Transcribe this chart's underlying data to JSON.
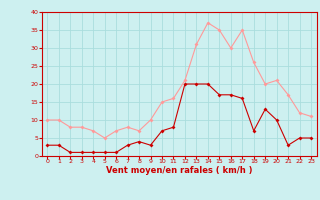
{
  "x": [
    0,
    1,
    2,
    3,
    4,
    5,
    6,
    7,
    8,
    9,
    10,
    11,
    12,
    13,
    14,
    15,
    16,
    17,
    18,
    19,
    20,
    21,
    22,
    23
  ],
  "wind_avg": [
    3,
    3,
    1,
    1,
    1,
    1,
    1,
    3,
    4,
    3,
    7,
    8,
    20,
    20,
    20,
    17,
    17,
    16,
    7,
    13,
    10,
    3,
    5,
    5
  ],
  "wind_gust": [
    10,
    10,
    8,
    8,
    7,
    5,
    7,
    8,
    7,
    10,
    15,
    16,
    21,
    31,
    37,
    35,
    30,
    35,
    26,
    20,
    21,
    17,
    12,
    11
  ],
  "xlabel": "Vent moyen/en rafales ( km/h )",
  "bg_color": "#cdf0f0",
  "grid_color": "#aadddd",
  "avg_color": "#cc0000",
  "gust_color": "#ff9999",
  "ylim": [
    0,
    40
  ],
  "yticks": [
    0,
    5,
    10,
    15,
    20,
    25,
    30,
    35,
    40
  ],
  "xticks": [
    0,
    1,
    2,
    3,
    4,
    5,
    6,
    7,
    8,
    9,
    10,
    11,
    12,
    13,
    14,
    15,
    16,
    17,
    18,
    19,
    20,
    21,
    22,
    23
  ]
}
